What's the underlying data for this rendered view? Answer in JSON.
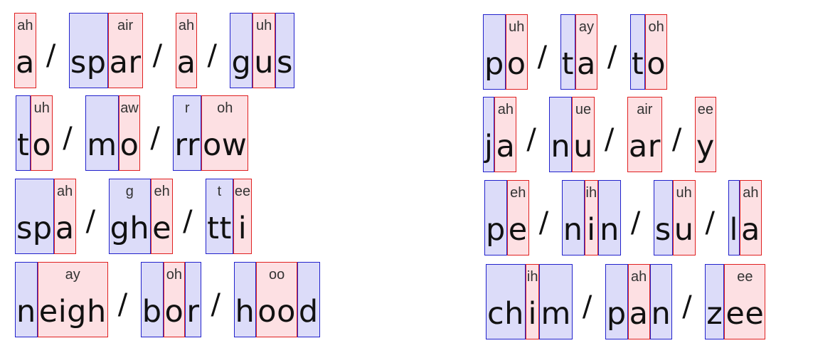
{
  "colors": {
    "consonant_fill": "#dcdcf9",
    "consonant_border": "#2222cc",
    "vowel_fill": "#fde0e3",
    "vowel_border": "#e02020"
  },
  "separator": "/",
  "left_column": [
    {
      "syllables": [
        [
          {
            "type": "v",
            "letters": "a",
            "sound": "ah"
          }
        ],
        [
          {
            "type": "c",
            "letters": "sp"
          },
          {
            "type": "v",
            "letters": "ar",
            "sound": "air"
          }
        ],
        [
          {
            "type": "v",
            "letters": "a",
            "sound": "ah"
          }
        ],
        [
          {
            "type": "c",
            "letters": "g"
          },
          {
            "type": "v",
            "letters": "u",
            "sound": "uh"
          },
          {
            "type": "c",
            "letters": "s"
          }
        ]
      ]
    },
    {
      "syllables": [
        [
          {
            "type": "c",
            "letters": "t"
          },
          {
            "type": "v",
            "letters": "o",
            "sound": "uh"
          }
        ],
        [
          {
            "type": "c",
            "letters": "m"
          },
          {
            "type": "v",
            "letters": "o",
            "sound": "aw"
          }
        ],
        [
          {
            "type": "c",
            "letters": "rr",
            "sound": "r"
          },
          {
            "type": "v",
            "letters": "ow",
            "sound": "oh"
          }
        ]
      ]
    },
    {
      "syllables": [
        [
          {
            "type": "c",
            "letters": "sp"
          },
          {
            "type": "v",
            "letters": "a",
            "sound": "ah"
          }
        ],
        [
          {
            "type": "c",
            "letters": "gh",
            "sound": "g"
          },
          {
            "type": "v",
            "letters": "e",
            "sound": "eh"
          }
        ],
        [
          {
            "type": "c",
            "letters": "tt",
            "sound": "t"
          },
          {
            "type": "v",
            "letters": "i",
            "sound": "ee"
          }
        ]
      ]
    },
    {
      "syllables": [
        [
          {
            "type": "c",
            "letters": "n"
          },
          {
            "type": "v",
            "letters": "eigh",
            "sound": "ay"
          }
        ],
        [
          {
            "type": "c",
            "letters": "b"
          },
          {
            "type": "v",
            "letters": "o",
            "sound": "oh"
          },
          {
            "type": "c",
            "letters": "r"
          }
        ],
        [
          {
            "type": "c",
            "letters": "h"
          },
          {
            "type": "v",
            "letters": "oo",
            "sound": "oo"
          },
          {
            "type": "c",
            "letters": "d"
          }
        ]
      ]
    }
  ],
  "right_column": [
    {
      "syllables": [
        [
          {
            "type": "c",
            "letters": "p"
          },
          {
            "type": "v",
            "letters": "o",
            "sound": "uh"
          }
        ],
        [
          {
            "type": "c",
            "letters": "t"
          },
          {
            "type": "v",
            "letters": "a",
            "sound": "ay"
          }
        ],
        [
          {
            "type": "c",
            "letters": "t"
          },
          {
            "type": "v",
            "letters": "o",
            "sound": "oh"
          }
        ]
      ]
    },
    {
      "syllables": [
        [
          {
            "type": "c",
            "letters": "j"
          },
          {
            "type": "v",
            "letters": "a",
            "sound": "ah"
          }
        ],
        [
          {
            "type": "c",
            "letters": "n"
          },
          {
            "type": "v",
            "letters": "u",
            "sound": "ue"
          }
        ],
        [
          {
            "type": "v",
            "letters": "ar",
            "sound": "air"
          }
        ],
        [
          {
            "type": "v",
            "letters": "y",
            "sound": "ee"
          }
        ]
      ]
    },
    {
      "syllables": [
        [
          {
            "type": "c",
            "letters": "p"
          },
          {
            "type": "v",
            "letters": "e",
            "sound": "eh"
          }
        ],
        [
          {
            "type": "c",
            "letters": "n"
          },
          {
            "type": "v",
            "letters": "i",
            "sound": "ih"
          },
          {
            "type": "c",
            "letters": "n"
          }
        ],
        [
          {
            "type": "c",
            "letters": "s"
          },
          {
            "type": "v",
            "letters": "u",
            "sound": "uh"
          }
        ],
        [
          {
            "type": "c",
            "letters": "l"
          },
          {
            "type": "v",
            "letters": "a",
            "sound": "ah"
          }
        ]
      ]
    },
    {
      "syllables": [
        [
          {
            "type": "c",
            "letters": "ch"
          },
          {
            "type": "v",
            "letters": "i",
            "sound": "ih"
          },
          {
            "type": "c",
            "letters": "m"
          }
        ],
        [
          {
            "type": "c",
            "letters": "p"
          },
          {
            "type": "v",
            "letters": "a",
            "sound": "ah"
          },
          {
            "type": "c",
            "letters": "n"
          }
        ],
        [
          {
            "type": "c",
            "letters": "z"
          },
          {
            "type": "v",
            "letters": "ee",
            "sound": "ee"
          }
        ]
      ]
    }
  ]
}
